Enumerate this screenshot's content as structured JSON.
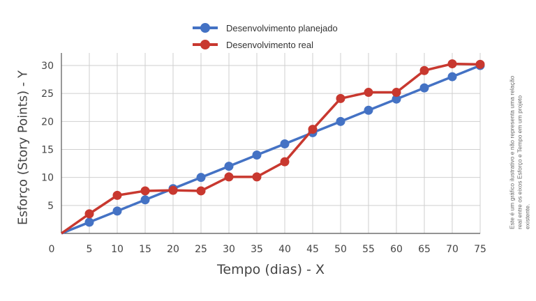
{
  "chart_data": {
    "type": "line",
    "title": "",
    "xlabel": "Tempo (dias) - X",
    "ylabel": "Esforço (Story Points) - Y",
    "xlim": [
      0,
      75
    ],
    "ylim": [
      0,
      30
    ],
    "x_ticks": [
      "0",
      "5",
      "10",
      "15",
      "20",
      "25",
      "30",
      "35",
      "40",
      "45",
      "50",
      "55",
      "60",
      "65",
      "70",
      "75"
    ],
    "y_ticks": [
      "5",
      "10",
      "15",
      "20",
      "25",
      "30"
    ],
    "grid": true,
    "legend_position": "top-center",
    "series": [
      {
        "name": "Desenvolvimento planejado",
        "color": "#4472c4",
        "x": [
          0,
          5,
          10,
          15,
          20,
          25,
          30,
          35,
          40,
          45,
          50,
          55,
          60,
          65,
          70,
          75
        ],
        "y": [
          0,
          2,
          4,
          6,
          8,
          10,
          12,
          14,
          16,
          18,
          20,
          22,
          24,
          26,
          28,
          30
        ]
      },
      {
        "name": "Desenvolvimento real",
        "color": "#c8382f",
        "x": [
          0,
          5,
          10,
          15,
          20,
          25,
          30,
          35,
          40,
          45,
          50,
          55,
          60,
          65,
          70,
          75
        ],
        "y": [
          0,
          3.5,
          6.8,
          7.6,
          7.7,
          7.6,
          10.1,
          10.1,
          12.8,
          18.6,
          24.1,
          25.2,
          25.2,
          29.1,
          30.3,
          30.2
        ]
      }
    ],
    "annotation": "Este é um gráfico ilustrativo e não representa uma relação real entre os eixos Esforço e Tempo em um projeto existente."
  }
}
